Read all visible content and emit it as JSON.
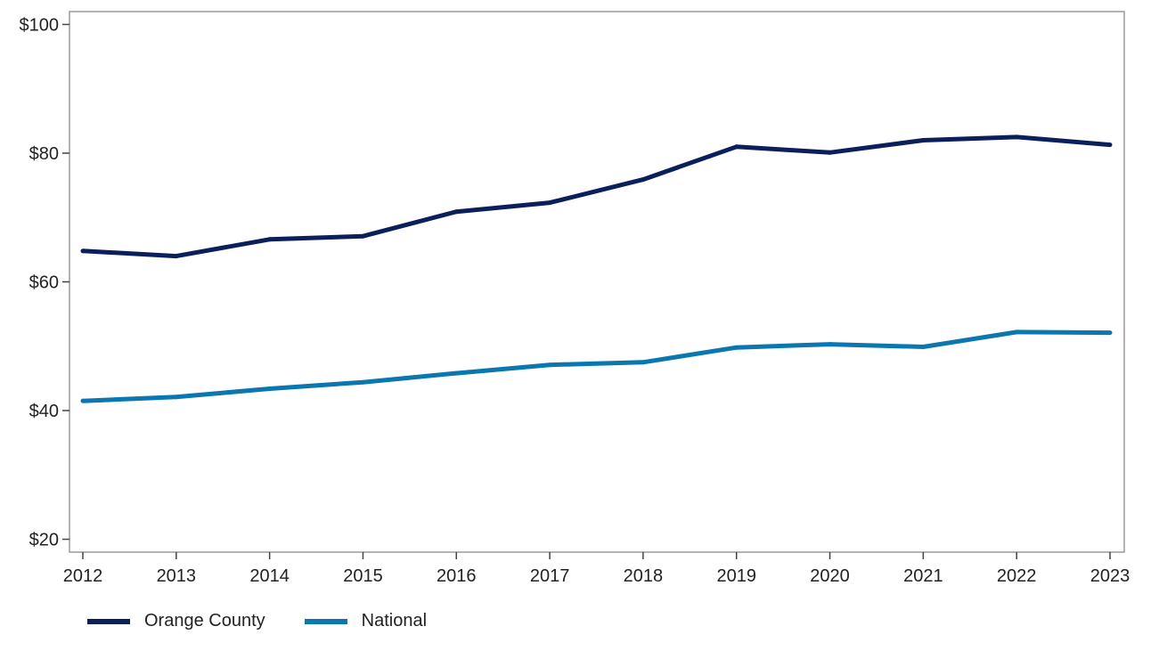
{
  "chart_data": {
    "type": "line",
    "title": "",
    "xlabel": "",
    "ylabel": "",
    "x": [
      "2012",
      "2013",
      "2014",
      "2015",
      "2016",
      "2017",
      "2018",
      "2019",
      "2020",
      "2021",
      "2022",
      "2023"
    ],
    "series": [
      {
        "name": "Orange County",
        "color": "#0b1f5c",
        "values": [
          64.8,
          64.0,
          66.6,
          67.1,
          70.9,
          72.3,
          75.9,
          81.0,
          80.1,
          82.0,
          82.5,
          81.3
        ]
      },
      {
        "name": "National",
        "color": "#0a77b0",
        "values": [
          41.5,
          42.1,
          43.4,
          44.4,
          45.8,
          47.1,
          47.5,
          49.8,
          50.3,
          49.9,
          52.2,
          52.1
        ]
      }
    ],
    "ylim": [
      18,
      102
    ],
    "yticks": [
      20,
      40,
      60,
      80,
      100
    ],
    "ytick_labels": [
      "$20",
      "$40",
      "$60",
      "$80",
      "$100"
    ],
    "grid": false,
    "legend_position": "bottom-left"
  }
}
